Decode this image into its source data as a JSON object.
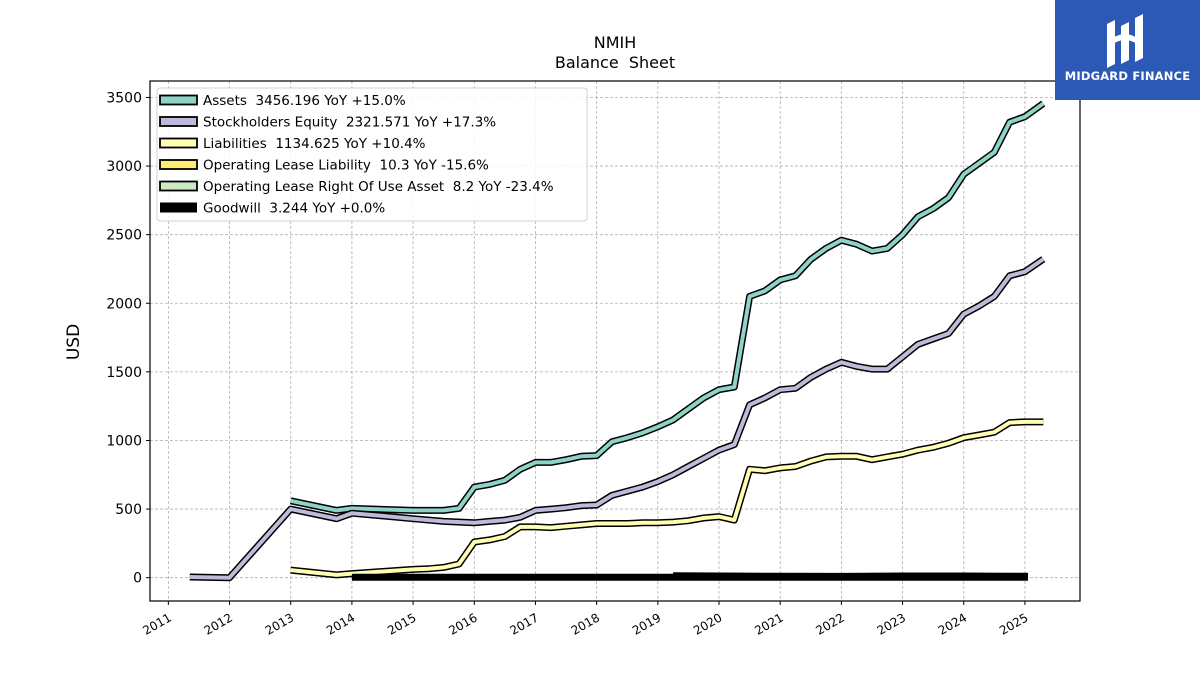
{
  "logo": {
    "text": "MIDGARD FINANCE",
    "color": "#2b59b5"
  },
  "chart_data": {
    "type": "line",
    "title": "NMIH",
    "subtitle": "Balance  Sheet",
    "ylabel": "USD",
    "xlabel": "",
    "xlim": [
      2010.7,
      2025.9
    ],
    "ylim": [
      -170,
      3620
    ],
    "xticks": [
      2011,
      2012,
      2013,
      2014,
      2015,
      2016,
      2017,
      2018,
      2019,
      2020,
      2021,
      2022,
      2023,
      2024,
      2025
    ],
    "xtick_labels": [
      "2011",
      "2012",
      "2013",
      "2014",
      "2015",
      "2016",
      "2017",
      "2018",
      "2019",
      "2020",
      "2021",
      "2022",
      "2023",
      "2024",
      "2025"
    ],
    "yticks": [
      0,
      500,
      1000,
      1500,
      2000,
      2500,
      3000,
      3500
    ],
    "ytick_labels": [
      "0",
      "500",
      "1000",
      "1500",
      "2000",
      "2500",
      "3000",
      "3500"
    ],
    "grid": true,
    "legend_position": "top-left",
    "series": [
      {
        "name": "Assets  3456.196 YoY +15.0%",
        "color": "#8dd3c7",
        "width": 4,
        "points": [
          [
            2013.0,
            560
          ],
          [
            2013.75,
            490
          ],
          [
            2014.0,
            505
          ],
          [
            2015.0,
            490
          ],
          [
            2015.5,
            490
          ],
          [
            2015.75,
            505
          ],
          [
            2016.0,
            660
          ],
          [
            2016.25,
            680
          ],
          [
            2016.5,
            710
          ],
          [
            2016.75,
            790
          ],
          [
            2017.0,
            840
          ],
          [
            2017.25,
            840
          ],
          [
            2017.5,
            860
          ],
          [
            2017.75,
            885
          ],
          [
            2018.0,
            890
          ],
          [
            2018.25,
            990
          ],
          [
            2018.5,
            1020
          ],
          [
            2018.75,
            1055
          ],
          [
            2019.0,
            1100
          ],
          [
            2019.25,
            1150
          ],
          [
            2019.5,
            1230
          ],
          [
            2019.75,
            1310
          ],
          [
            2020.0,
            1370
          ],
          [
            2020.25,
            1390
          ],
          [
            2020.5,
            2050
          ],
          [
            2020.75,
            2090
          ],
          [
            2021.0,
            2170
          ],
          [
            2021.25,
            2200
          ],
          [
            2021.5,
            2320
          ],
          [
            2021.75,
            2400
          ],
          [
            2022.0,
            2460
          ],
          [
            2022.25,
            2430
          ],
          [
            2022.5,
            2380
          ],
          [
            2022.75,
            2400
          ],
          [
            2023.0,
            2500
          ],
          [
            2023.25,
            2630
          ],
          [
            2023.5,
            2690
          ],
          [
            2023.75,
            2770
          ],
          [
            2024.0,
            2940
          ],
          [
            2024.25,
            3020
          ],
          [
            2024.5,
            3100
          ],
          [
            2024.75,
            3320
          ],
          [
            2025.0,
            3360
          ],
          [
            2025.3,
            3456
          ]
        ]
      },
      {
        "name": "Stockholders Equity  2321.571 YoY +17.3%",
        "color": "#bebada",
        "width": 4,
        "points": [
          [
            2011.35,
            5
          ],
          [
            2012.0,
            0
          ],
          [
            2013.0,
            500
          ],
          [
            2013.75,
            430
          ],
          [
            2014.0,
            470
          ],
          [
            2014.5,
            450
          ],
          [
            2015.0,
            430
          ],
          [
            2015.5,
            410
          ],
          [
            2016.0,
            400
          ],
          [
            2016.25,
            410
          ],
          [
            2016.5,
            420
          ],
          [
            2016.75,
            440
          ],
          [
            2017.0,
            490
          ],
          [
            2017.25,
            500
          ],
          [
            2017.5,
            510
          ],
          [
            2017.75,
            525
          ],
          [
            2018.0,
            530
          ],
          [
            2018.25,
            600
          ],
          [
            2018.5,
            630
          ],
          [
            2018.75,
            660
          ],
          [
            2019.0,
            700
          ],
          [
            2019.25,
            750
          ],
          [
            2019.5,
            810
          ],
          [
            2019.75,
            870
          ],
          [
            2020.0,
            930
          ],
          [
            2020.25,
            970
          ],
          [
            2020.5,
            1260
          ],
          [
            2020.75,
            1310
          ],
          [
            2021.0,
            1370
          ],
          [
            2021.25,
            1380
          ],
          [
            2021.5,
            1460
          ],
          [
            2021.75,
            1520
          ],
          [
            2022.0,
            1570
          ],
          [
            2022.25,
            1540
          ],
          [
            2022.5,
            1520
          ],
          [
            2022.75,
            1520
          ],
          [
            2023.0,
            1610
          ],
          [
            2023.25,
            1700
          ],
          [
            2023.5,
            1740
          ],
          [
            2023.75,
            1780
          ],
          [
            2024.0,
            1920
          ],
          [
            2024.25,
            1980
          ],
          [
            2024.5,
            2050
          ],
          [
            2024.75,
            2200
          ],
          [
            2025.0,
            2230
          ],
          [
            2025.3,
            2322
          ]
        ]
      },
      {
        "name": "Liabilities  1134.625 YoY +10.4%",
        "color": "#ffffb3",
        "width": 4,
        "points": [
          [
            2013.0,
            55
          ],
          [
            2013.75,
            20
          ],
          [
            2014.0,
            30
          ],
          [
            2014.5,
            45
          ],
          [
            2015.0,
            60
          ],
          [
            2015.25,
            65
          ],
          [
            2015.5,
            75
          ],
          [
            2015.75,
            100
          ],
          [
            2016.0,
            260
          ],
          [
            2016.25,
            275
          ],
          [
            2016.5,
            300
          ],
          [
            2016.75,
            370
          ],
          [
            2017.0,
            370
          ],
          [
            2017.25,
            365
          ],
          [
            2017.5,
            375
          ],
          [
            2017.75,
            385
          ],
          [
            2018.0,
            395
          ],
          [
            2018.25,
            395
          ],
          [
            2018.5,
            395
          ],
          [
            2018.75,
            400
          ],
          [
            2019.0,
            400
          ],
          [
            2019.25,
            405
          ],
          [
            2019.5,
            415
          ],
          [
            2019.75,
            435
          ],
          [
            2020.0,
            445
          ],
          [
            2020.25,
            420
          ],
          [
            2020.5,
            790
          ],
          [
            2020.75,
            780
          ],
          [
            2021.0,
            800
          ],
          [
            2021.25,
            810
          ],
          [
            2021.5,
            850
          ],
          [
            2021.75,
            880
          ],
          [
            2022.0,
            885
          ],
          [
            2022.25,
            885
          ],
          [
            2022.5,
            860
          ],
          [
            2022.75,
            880
          ],
          [
            2023.0,
            900
          ],
          [
            2023.25,
            930
          ],
          [
            2023.5,
            950
          ],
          [
            2023.75,
            980
          ],
          [
            2024.0,
            1020
          ],
          [
            2024.25,
            1040
          ],
          [
            2024.5,
            1060
          ],
          [
            2024.75,
            1130
          ],
          [
            2025.0,
            1135
          ],
          [
            2025.3,
            1135
          ]
        ]
      },
      {
        "name": "Operating Lease Liability  10.3 YoY -15.6%",
        "color": "#ffed6f",
        "width": 4,
        "points": [
          [
            2019.25,
            14
          ],
          [
            2020.0,
            12
          ],
          [
            2021.0,
            10
          ],
          [
            2022.0,
            9
          ],
          [
            2022.5,
            11
          ],
          [
            2023.0,
            12
          ],
          [
            2024.0,
            12
          ],
          [
            2024.5,
            11
          ],
          [
            2025.05,
            10
          ]
        ]
      },
      {
        "name": "Operating Lease Right Of Use Asset  8.2 YoY -23.4%",
        "color": "#ccebc5",
        "width": 4,
        "points": [
          [
            2019.25,
            12
          ],
          [
            2020.0,
            10
          ],
          [
            2021.0,
            8
          ],
          [
            2022.0,
            7
          ],
          [
            2022.5,
            9
          ],
          [
            2023.0,
            10
          ],
          [
            2024.0,
            10
          ],
          [
            2024.5,
            9
          ],
          [
            2025.05,
            8
          ]
        ]
      },
      {
        "name": "Goodwill  3.244 YoY +0.0%",
        "color": "#000000",
        "width": 7,
        "points": [
          [
            2014.0,
            3
          ],
          [
            2025.05,
            3
          ]
        ]
      }
    ]
  }
}
